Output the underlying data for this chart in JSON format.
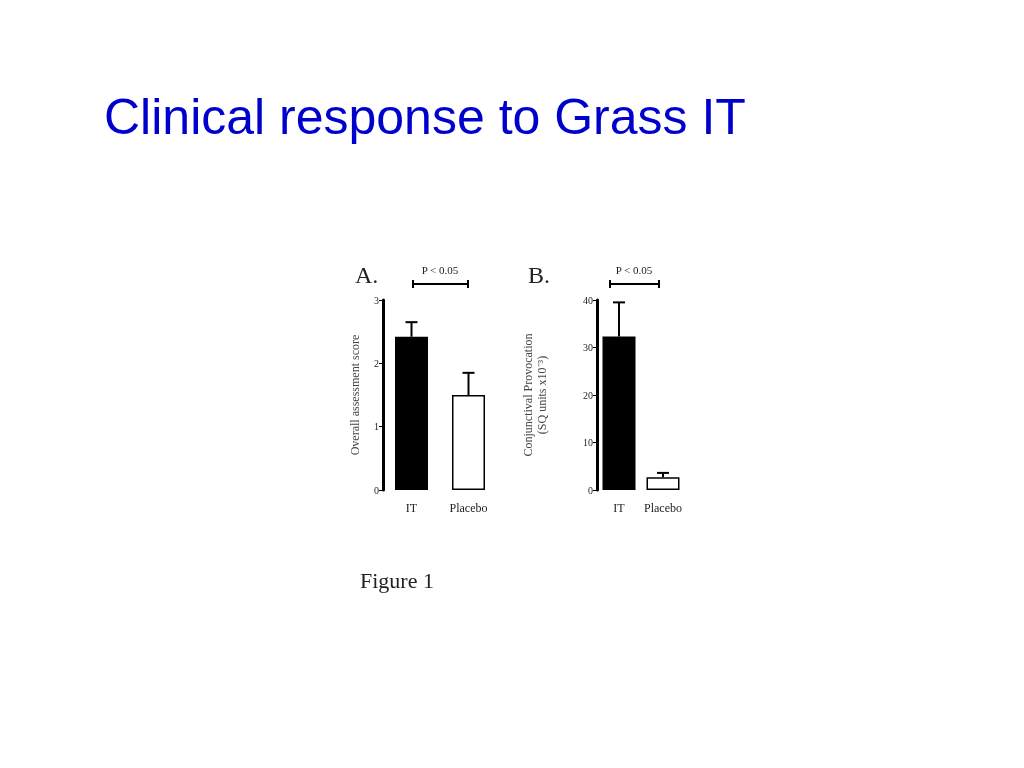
{
  "chart_data": [
    {
      "type": "bar",
      "title": "Clinical response to Grass IT",
      "subtitle": "A.",
      "ylabel": "Overall assessment score",
      "categories": [
        "IT",
        "Placebo"
      ],
      "values": [
        2.42,
        1.5
      ],
      "colors": [
        "#000000",
        "#ffffff"
      ],
      "errors": [
        [
          2.42,
          2.65
        ],
        [
          1.5,
          1.85
        ]
      ],
      "ylim": [
        0,
        3
      ],
      "yticks": [
        0,
        1,
        2,
        3
      ],
      "annotations": [
        "P < 0.05",
        "Figure 1"
      ]
    },
    {
      "type": "bar",
      "subtitle": "B.",
      "ylabel": "Conjunctival Provocation\n(SQ units x10⁻³)",
      "categories": [
        "IT",
        "Placebo"
      ],
      "values": [
        32.3,
        2.7
      ],
      "colors": [
        "#000000",
        "#ffffff"
      ],
      "errors": [
        [
          32.3,
          39.5
        ],
        [
          2.7,
          3.6
        ]
      ],
      "ylim": [
        0,
        40
      ],
      "yticks": [
        0,
        10,
        20,
        30,
        40
      ],
      "annotations": [
        "P < 0.05"
      ]
    }
  ]
}
